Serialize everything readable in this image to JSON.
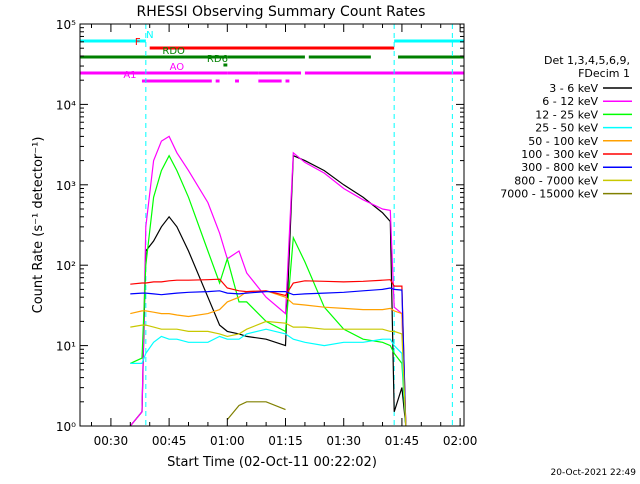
{
  "chart_data": {
    "type": "line",
    "title": "RHESSI Observing Summary Count Rates",
    "xlabel": "Start Time (02-Oct-11 00:22:02)",
    "ylabel": "Count Rate (s⁻¹ detector⁻¹)",
    "y_scale": "log",
    "ylim": [
      1,
      100000
    ],
    "xlim": [
      "00:22:02",
      "02:01:00"
    ],
    "x_ticks": [
      "00:30",
      "00:45",
      "01:00",
      "01:15",
      "01:30",
      "01:45",
      "02:00"
    ],
    "y_ticks": [
      "10⁰",
      "10¹",
      "10²",
      "10³",
      "10⁴",
      "10⁵"
    ],
    "legend_header": [
      "Det 1,3,4,5,6,9,",
      "FDecim 1"
    ],
    "legend_position": "right",
    "footer_date": "20-Oct-2021 22:49",
    "flags": [
      {
        "label": "N",
        "color": "#00ffff",
        "segments": [
          [
            "00:22:02",
            "00:39:00"
          ],
          [
            "01:43:00",
            "02:01:00"
          ]
        ]
      },
      {
        "label": "F",
        "color": "#ff0000",
        "segments": [
          [
            "00:40:00",
            "01:43:00"
          ]
        ]
      },
      {
        "label": "RDO",
        "color": "#008000",
        "segments": [
          [
            "00:22:02",
            "01:00:00"
          ],
          [
            "01:00:00",
            "01:20:00"
          ],
          [
            "01:21:00",
            "01:37:00"
          ],
          [
            "01:44:00",
            "02:01:00"
          ]
        ]
      },
      {
        "label": "RD6",
        "color": "#008000",
        "segments": [
          [
            "00:59:00",
            "01:00:00"
          ]
        ]
      },
      {
        "label": "AO",
        "color": "#ff00ff",
        "segments": [
          [
            "00:22:02",
            "01:00:00"
          ],
          [
            "01:00:00",
            "01:08:00"
          ],
          [
            "01:08:00",
            "01:19:00"
          ],
          [
            "01:20:00",
            "02:01:00"
          ]
        ]
      },
      {
        "label": "A1",
        "color": "#ff00ff",
        "segments": [
          [
            "00:38:00",
            "00:56:00"
          ],
          [
            "00:57:00",
            "00:58:00"
          ],
          [
            "01:02:00",
            "01:03:00"
          ],
          [
            "01:08:00",
            "01:14:00"
          ],
          [
            "01:15:00",
            "01:16:00"
          ]
        ]
      }
    ],
    "x_sample_times": [
      "00:35",
      "00:38",
      "00:39",
      "00:41",
      "00:43",
      "00:45",
      "00:47",
      "00:50",
      "00:55",
      "00:58",
      "01:00",
      "01:03",
      "01:05",
      "01:10",
      "01:15",
      "01:17",
      "01:20",
      "01:25",
      "01:30",
      "01:35",
      "01:40",
      "01:42",
      "01:43",
      "01:45",
      "01:46"
    ],
    "series": [
      {
        "name": "3 - 6 keV",
        "color": "#000000",
        "values": [
          1,
          1.5,
          150,
          200,
          300,
          400,
          300,
          150,
          40,
          18,
          15,
          14,
          13,
          12,
          10,
          2300,
          2000,
          1500,
          1000,
          700,
          450,
          350,
          1.5,
          3,
          1
        ]
      },
      {
        "name": "6 - 12 keV",
        "color": "#ff00ff",
        "values": [
          1,
          1.5,
          300,
          2000,
          3500,
          4000,
          2500,
          1500,
          600,
          250,
          120,
          150,
          80,
          40,
          25,
          2500,
          1900,
          1400,
          900,
          650,
          500,
          480,
          30,
          25,
          1
        ]
      },
      {
        "name": "12 - 25 keV",
        "color": "#00ff00",
        "values": [
          6,
          7,
          100,
          700,
          1500,
          2300,
          1500,
          700,
          150,
          60,
          120,
          35,
          35,
          20,
          15,
          220,
          110,
          30,
          16,
          12,
          11,
          10,
          8,
          6,
          1
        ]
      },
      {
        "name": "25 - 50 keV",
        "color": "#00ffff",
        "values": [
          6,
          6,
          8,
          11,
          13,
          12,
          12,
          11,
          11,
          13,
          12,
          12,
          14,
          16,
          14,
          12,
          11,
          10,
          11,
          11,
          12,
          12,
          10,
          8,
          1
        ]
      },
      {
        "name": "50 - 100 keV",
        "color": "#ffa000",
        "values": [
          25,
          27,
          27,
          26,
          25,
          25,
          24,
          23,
          25,
          28,
          35,
          40,
          47,
          48,
          40,
          33,
          32,
          30,
          29,
          28,
          28,
          29,
          27,
          25,
          1
        ]
      },
      {
        "name": "100 - 300 keV",
        "color": "#ff0000",
        "values": [
          58,
          60,
          60,
          62,
          62,
          64,
          65,
          65,
          66,
          67,
          52,
          48,
          47,
          48,
          42,
          60,
          64,
          63,
          62,
          63,
          65,
          66,
          55,
          55,
          1
        ]
      },
      {
        "name": "300 - 800 keV",
        "color": "#0000ff",
        "values": [
          44,
          45,
          45,
          44,
          43,
          44,
          45,
          46,
          47,
          48,
          45,
          44,
          45,
          47,
          47,
          43,
          44,
          45,
          46,
          48,
          50,
          52,
          50,
          49,
          1
        ]
      },
      {
        "name": "800 - 7000 keV",
        "color": "#c8c800",
        "values": [
          17,
          18,
          18,
          17,
          16,
          16,
          16,
          15,
          15,
          14,
          13,
          14,
          16,
          20,
          19,
          17,
          17,
          16,
          16,
          16,
          16,
          15,
          15,
          14,
          1
        ]
      },
      {
        "name": "7000 - 15000 keV",
        "color": "#808000",
        "values": [
          null,
          null,
          null,
          null,
          null,
          null,
          null,
          null,
          null,
          null,
          1.2,
          1.8,
          2,
          2,
          1.6,
          null,
          null,
          null,
          null,
          null,
          null,
          null,
          null,
          null,
          null
        ]
      }
    ]
  }
}
